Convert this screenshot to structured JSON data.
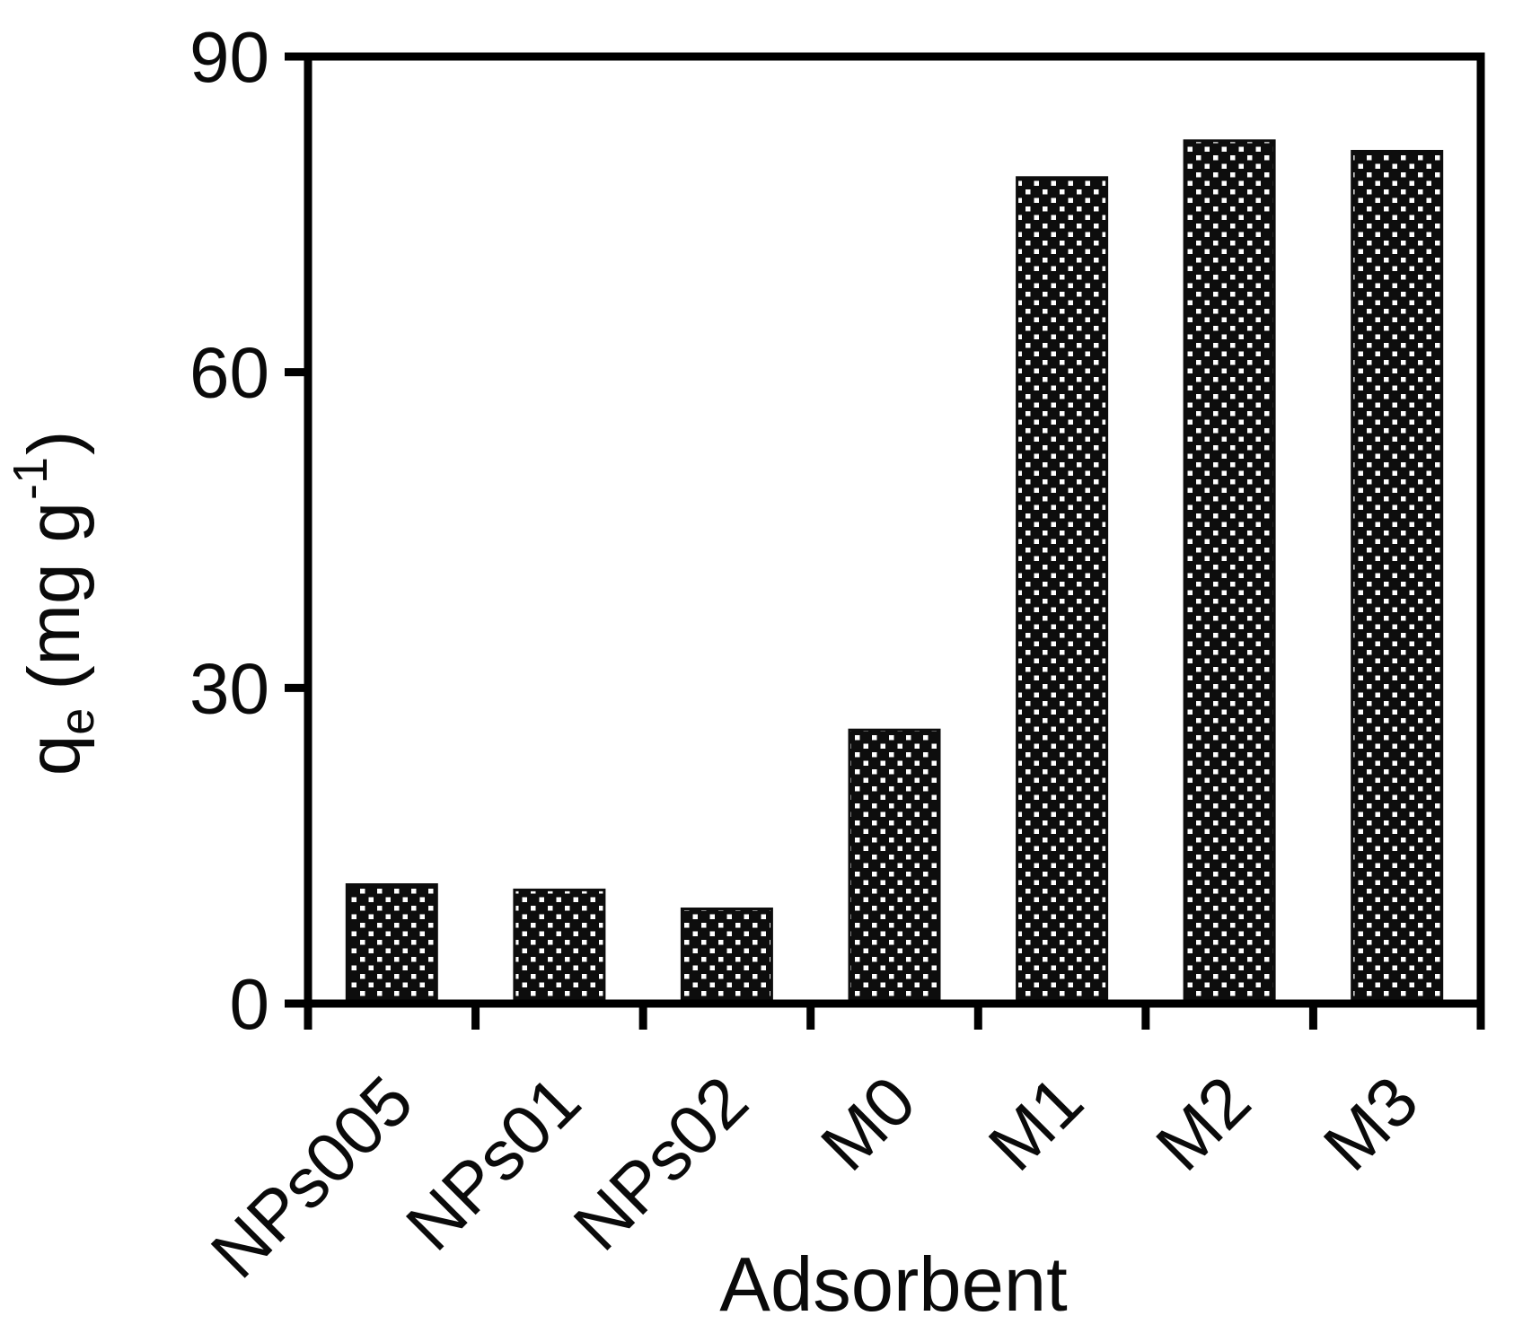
{
  "page": {
    "background_color": "#ffffff"
  },
  "chart_data": {
    "type": "bar",
    "categories": [
      "NPs005",
      "NPs01",
      "NPs02",
      "M0",
      "M1",
      "M2",
      "M3"
    ],
    "values": [
      11.3,
      10.8,
      9.0,
      26.0,
      78.5,
      82.0,
      81.0
    ],
    "title": "",
    "xlabel": "Adsorbent",
    "ylabel": {
      "symbol": "q",
      "subscript": "e",
      "unit_prefix": "(mg g",
      "superscript": "-1",
      "unit_suffix": ")"
    },
    "ylabel_text": "qe (mg g-1)",
    "ylim": [
      0,
      90
    ],
    "yticks": [
      0,
      30,
      60,
      90
    ],
    "ytick_labels": [
      "0",
      "30",
      "60",
      "90"
    ],
    "xtick_style": "boundary-ticks-between-categories",
    "xtick_label_rotation_deg": 45,
    "grid": false,
    "legend": false,
    "bar_fill_color": "#0d0d0d",
    "bar_dot_color": "#ffffff",
    "bar_pattern": "polka-dot",
    "axis_color": "#000000",
    "background_color": "#ffffff"
  }
}
